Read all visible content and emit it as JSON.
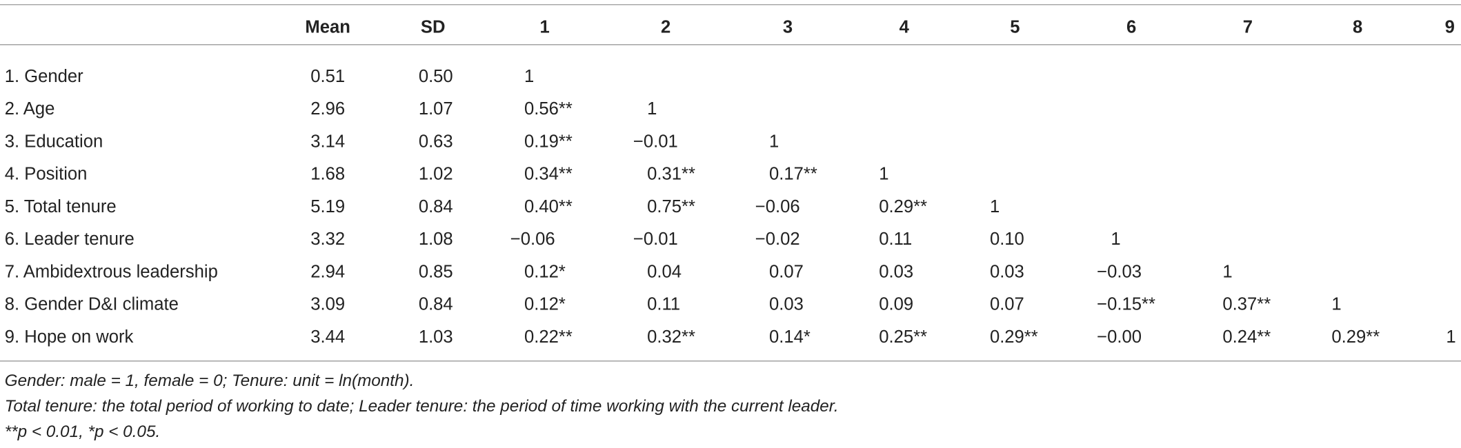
{
  "table": {
    "columns": [
      "Mean",
      "SD",
      "1",
      "2",
      "3",
      "4",
      "5",
      "6",
      "7",
      "8",
      "9"
    ],
    "rows": [
      {
        "label": "1. Gender",
        "cells": [
          "0.51",
          "0.50",
          "1"
        ]
      },
      {
        "label": "2. Age",
        "cells": [
          "2.96",
          "1.07",
          "0.56**",
          "1"
        ]
      },
      {
        "label": "3. Education",
        "cells": [
          "3.14",
          "0.63",
          "0.19**",
          "−0.01",
          "1"
        ]
      },
      {
        "label": "4. Position",
        "cells": [
          "1.68",
          "1.02",
          "0.34**",
          "0.31**",
          "0.17**",
          "1"
        ]
      },
      {
        "label": "5. Total tenure",
        "cells": [
          "5.19",
          "0.84",
          "0.40**",
          "0.75**",
          "−0.06",
          "0.29**",
          "1"
        ]
      },
      {
        "label": "6. Leader tenure",
        "cells": [
          "3.32",
          "1.08",
          "−0.06",
          "−0.01",
          "−0.02",
          "0.11",
          "0.10",
          "1"
        ]
      },
      {
        "label": "7. Ambidextrous leadership",
        "cells": [
          "2.94",
          "0.85",
          "0.12*",
          "0.04",
          "0.07",
          "0.03",
          "0.03",
          "−0.03",
          "1"
        ]
      },
      {
        "label": "8. Gender D&I climate",
        "cells": [
          "3.09",
          "0.84",
          "0.12*",
          "0.11",
          "0.03",
          "0.09",
          "0.07",
          "−0.15**",
          "0.37**",
          "1"
        ]
      },
      {
        "label": "9. Hope on work",
        "cells": [
          "3.44",
          "1.03",
          "0.22**",
          "0.32**",
          "0.14*",
          "0.25**",
          "0.29**",
          "−0.00",
          "0.24**",
          "0.29**",
          "1"
        ]
      }
    ],
    "notes": [
      "Gender: male = 1, female = 0; Tenure: unit = ln(month).",
      "Total tenure: the total period of working to date; Leader tenure: the period of time working with the current leader.",
      "**p < 0.01, *p < 0.05."
    ]
  }
}
